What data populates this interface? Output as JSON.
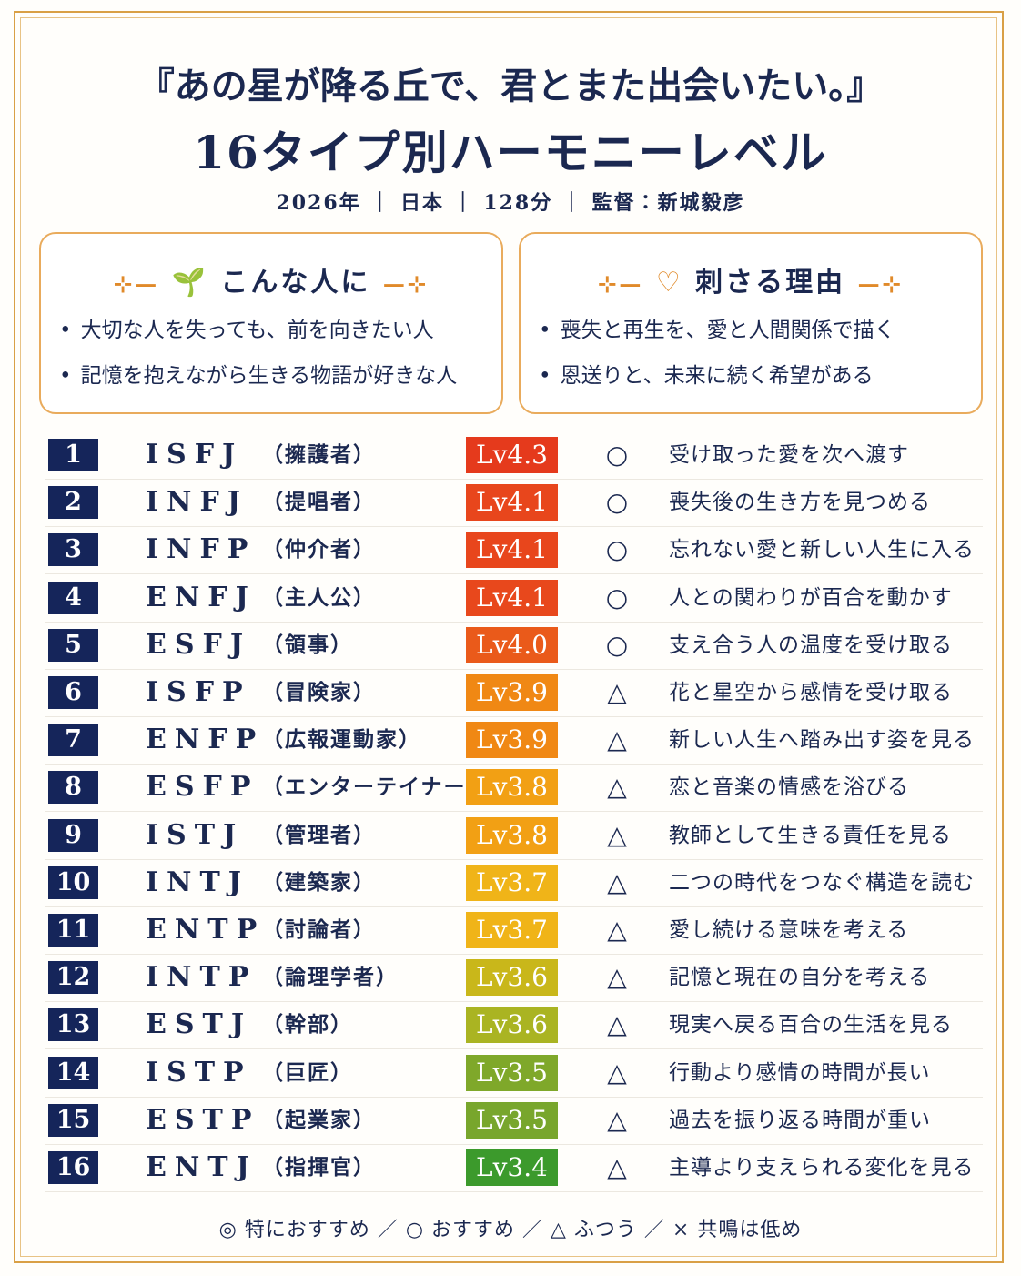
{
  "header": {
    "title": "『あの星が降る丘で、君とまた出会いたい。』",
    "subtitle": "16タイプ別ハーモニーレベル",
    "meta": "2026年 ｜ 日本 ｜ 128分 ｜ 監督：新城毅彦"
  },
  "boxes": [
    {
      "title": "こんな人に",
      "items": [
        "大切な人を失っても、前を向きたい人",
        "記憶を抱えながら生きる物語が好きな人"
      ]
    },
    {
      "title": "刺さる理由",
      "items": [
        "喪失と再生を、愛と人間関係で描く",
        "恩送りと、未来に続く希望がある"
      ]
    }
  ],
  "rows": [
    {
      "rank": 1,
      "type": "ISFJ",
      "role": "（擁護者）",
      "level": "Lv4.3",
      "color": "#e53a1c",
      "mark": "○",
      "comment": "受け取った愛を次へ渡す"
    },
    {
      "rank": 2,
      "type": "INFJ",
      "role": "（提唱者）",
      "level": "Lv4.1",
      "color": "#e8461c",
      "mark": "○",
      "comment": "喪失後の生き方を見つめる"
    },
    {
      "rank": 3,
      "type": "INFP",
      "role": "（仲介者）",
      "level": "Lv4.1",
      "color": "#e8461c",
      "mark": "○",
      "comment": "忘れない愛と新しい人生に入る"
    },
    {
      "rank": 4,
      "type": "ENFJ",
      "role": "（主人公）",
      "level": "Lv4.1",
      "color": "#e8481c",
      "mark": "○",
      "comment": "人との関わりが百合を動かす"
    },
    {
      "rank": 5,
      "type": "ESFJ",
      "role": "（領事）",
      "level": "Lv4.0",
      "color": "#ea5a1a",
      "mark": "○",
      "comment": "支え合う人の温度を受け取る"
    },
    {
      "rank": 6,
      "type": "ISFP",
      "role": "（冒険家）",
      "level": "Lv3.9",
      "color": "#f08814",
      "mark": "△",
      "comment": "花と星空から感情を受け取る"
    },
    {
      "rank": 7,
      "type": "ENFP",
      "role": "（広報運動家）",
      "level": "Lv3.9",
      "color": "#f08814",
      "mark": "△",
      "comment": "新しい人生へ踏み出す姿を見る"
    },
    {
      "rank": 8,
      "type": "ESFP",
      "role": "（エンターテイナー）",
      "level": "Lv3.8",
      "color": "#f2a014",
      "mark": "△",
      "comment": "恋と音楽の情感を浴びる"
    },
    {
      "rank": 9,
      "type": "ISTJ",
      "role": "（管理者）",
      "level": "Lv3.8",
      "color": "#f2a014",
      "mark": "△",
      "comment": "教師として生きる責任を見る"
    },
    {
      "rank": 10,
      "type": "INTJ",
      "role": "（建築家）",
      "level": "Lv3.7",
      "color": "#f0b418",
      "mark": "△",
      "comment": "二つの時代をつなぐ構造を読む"
    },
    {
      "rank": 11,
      "type": "ENTP",
      "role": "（討論者）",
      "level": "Lv3.7",
      "color": "#f0b418",
      "mark": "△",
      "comment": "愛し続ける意味を考える"
    },
    {
      "rank": 12,
      "type": "INTP",
      "role": "（論理学者）",
      "level": "Lv3.6",
      "color": "#c9b71a",
      "mark": "△",
      "comment": "記憶と現在の自分を考える"
    },
    {
      "rank": 13,
      "type": "ESTJ",
      "role": "（幹部）",
      "level": "Lv3.6",
      "color": "#aab422",
      "mark": "△",
      "comment": "現実へ戻る百合の生活を見る"
    },
    {
      "rank": 14,
      "type": "ISTP",
      "role": "（巨匠）",
      "level": "Lv3.5",
      "color": "#7fa82a",
      "mark": "△",
      "comment": "行動より感情の時間が長い"
    },
    {
      "rank": 15,
      "type": "ESTP",
      "role": "（起業家）",
      "level": "Lv3.5",
      "color": "#78a62c",
      "mark": "△",
      "comment": "過去を振り返る時間が重い"
    },
    {
      "rank": 16,
      "type": "ENTJ",
      "role": "（指揮官）",
      "level": "Lv3.4",
      "color": "#3c9a2c",
      "mark": "△",
      "comment": "主導より支えられる変化を見る"
    }
  ],
  "legend": "◎ 特におすすめ ／ ○ おすすめ ／ △ ふつう ／ × 共鳴は低め"
}
